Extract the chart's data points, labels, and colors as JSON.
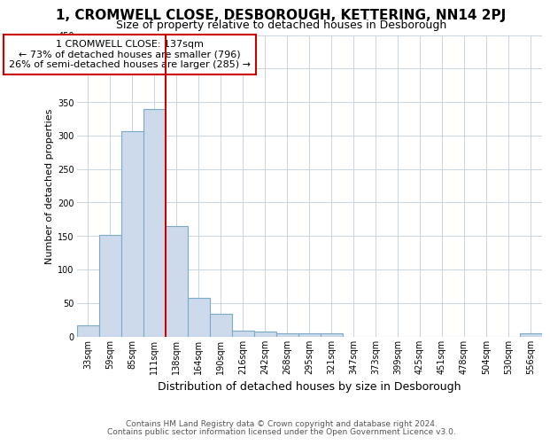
{
  "title_line1": "1, CROMWELL CLOSE, DESBOROUGH, KETTERING, NN14 2PJ",
  "title_line2": "Size of property relative to detached houses in Desborough",
  "xlabel": "Distribution of detached houses by size in Desborough",
  "ylabel": "Number of detached properties",
  "footer_line1": "Contains HM Land Registry data © Crown copyright and database right 2024.",
  "footer_line2": "Contains public sector information licensed under the Open Government Licence v3.0.",
  "annotation_line1": "1 CROMWELL CLOSE: 137sqm",
  "annotation_line2": "← 73% of detached houses are smaller (796)",
  "annotation_line3": "26% of semi-detached houses are larger (285) →",
  "bar_color": "#ccdaeb",
  "bar_edge_color": "#7aaac8",
  "marker_color": "#cc0000",
  "categories": [
    "33sqm",
    "59sqm",
    "85sqm",
    "111sqm",
    "138sqm",
    "164sqm",
    "190sqm",
    "216sqm",
    "242sqm",
    "268sqm",
    "295sqm",
    "321sqm",
    "347sqm",
    "373sqm",
    "399sqm",
    "425sqm",
    "451sqm",
    "478sqm",
    "504sqm",
    "530sqm",
    "556sqm"
  ],
  "values": [
    17,
    152,
    306,
    340,
    165,
    57,
    34,
    9,
    7,
    5,
    5,
    5,
    0,
    0,
    0,
    0,
    0,
    0,
    0,
    0,
    4
  ],
  "ylim": [
    0,
    450
  ],
  "yticks": [
    0,
    50,
    100,
    150,
    200,
    250,
    300,
    350,
    400,
    450
  ],
  "red_line_x": 3.5,
  "background_color": "#ffffff",
  "grid_color": "#c8d4e0",
  "title_fontsize": 11,
  "subtitle_fontsize": 9,
  "footer_fontsize": 6.5,
  "ylabel_fontsize": 8,
  "xlabel_fontsize": 9,
  "tick_fontsize": 7,
  "annot_fontsize": 8
}
